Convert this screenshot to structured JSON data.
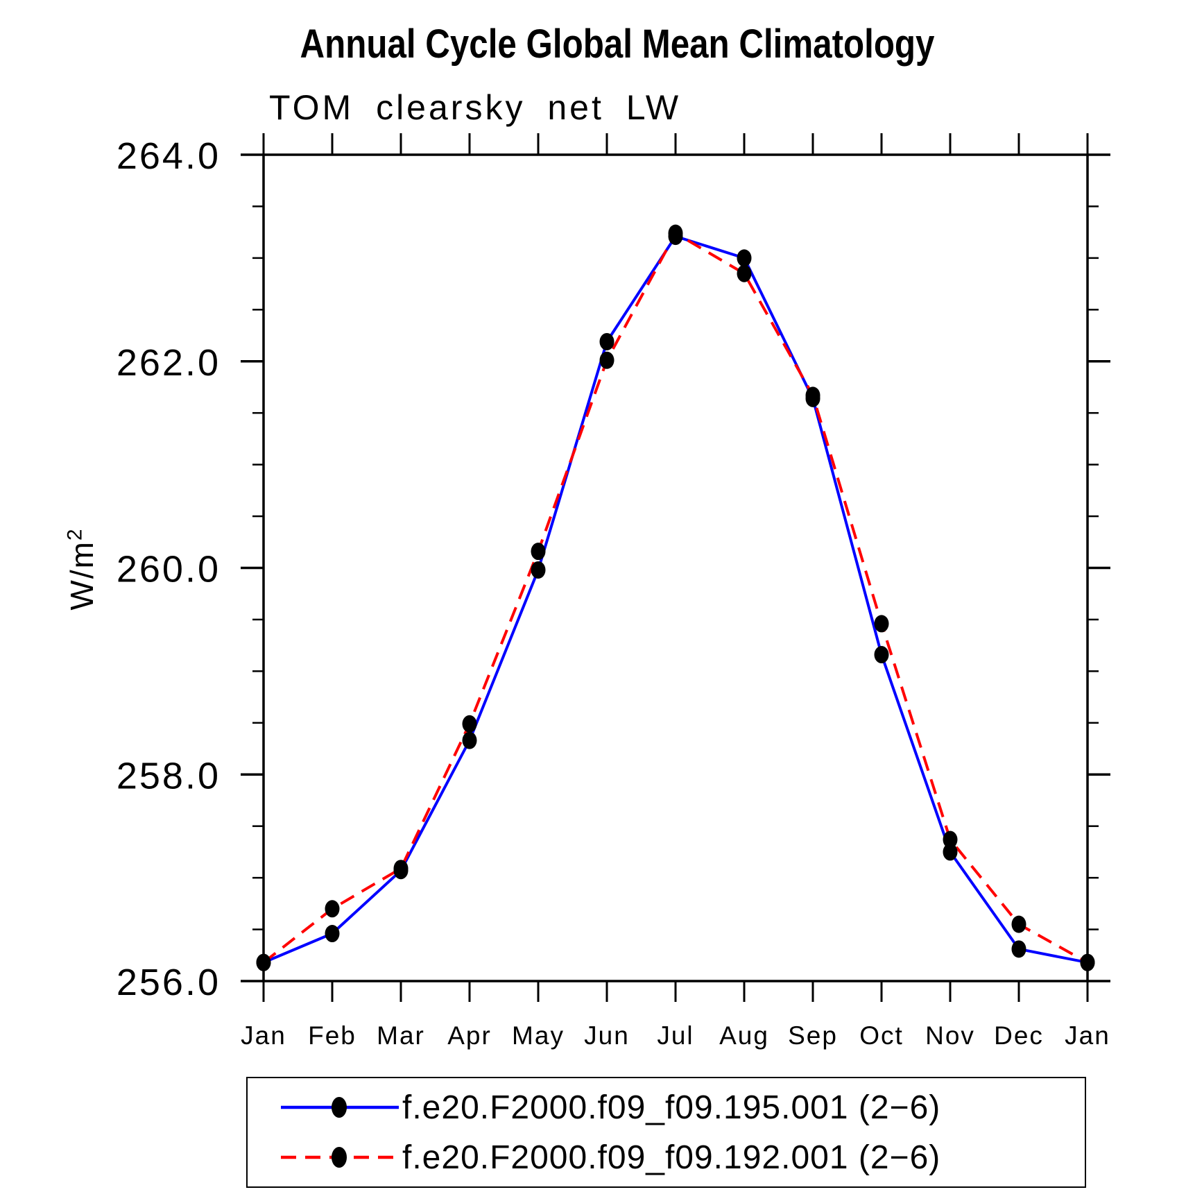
{
  "chart_data": {
    "type": "line",
    "title": "Annual Cycle Global Mean Climatology",
    "subtitle": "TOM clearsky net LW",
    "ylabel_base": "W/m",
    "ylabel_exponent": "2",
    "categories": [
      "Jan",
      "Feb",
      "Mar",
      "Apr",
      "May",
      "Jun",
      "Jul",
      "Aug",
      "Sep",
      "Oct",
      "Nov",
      "Dec",
      "Jan"
    ],
    "ylim": [
      256.0,
      264.0
    ],
    "ytick_major_interval": 2.0,
    "ytick_minor_interval": 0.5,
    "grid": false,
    "legend_position": "bottom",
    "axis_color": "#000000",
    "marker_color": "#000000",
    "series": [
      {
        "name": "f.e20.F2000.f09_f09.195.001 (2−6)",
        "color": "#0000ff",
        "line_style": "solid",
        "values": [
          256.18,
          256.46,
          257.07,
          258.33,
          259.98,
          262.19,
          263.21,
          263.0,
          261.64,
          259.16,
          257.25,
          256.31,
          256.18
        ]
      },
      {
        "name": "f.e20.F2000.f09_f09.192.001 (2−6)",
        "color": "#ff0000",
        "line_style": "dashed",
        "values": [
          256.18,
          256.7,
          257.09,
          258.49,
          260.16,
          262.01,
          263.24,
          262.85,
          261.67,
          259.46,
          257.37,
          256.55,
          256.18
        ]
      }
    ]
  }
}
